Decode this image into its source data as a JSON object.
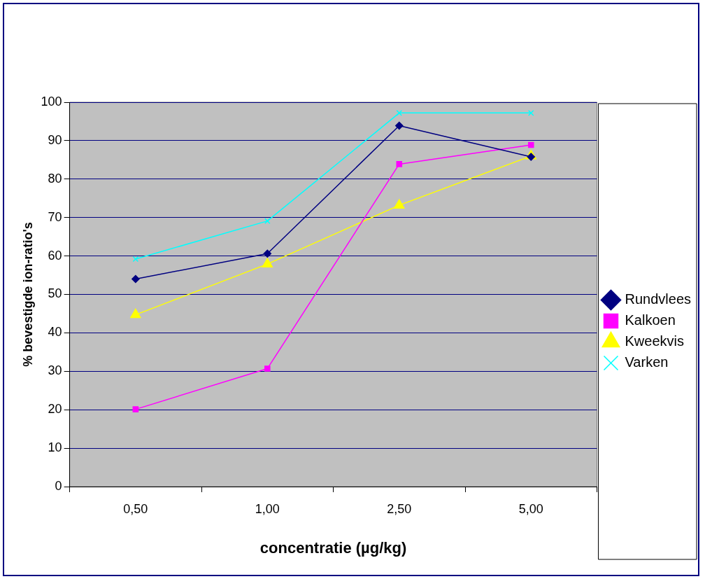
{
  "chart_data": {
    "type": "line",
    "xlabel": "concentratie (µg/kg)",
    "ylabel": "% bevestigde ion-ratio's",
    "categories": [
      "0,50",
      "1,00",
      "2,50",
      "5,00"
    ],
    "ylim": [
      0,
      100
    ],
    "yticks": [
      0,
      10,
      20,
      30,
      40,
      50,
      60,
      70,
      80,
      90,
      100
    ],
    "grid": "y",
    "legend": "right",
    "series": [
      {
        "name": "Rundvlees",
        "color": "#000080",
        "marker": "diamond",
        "values": [
          54,
          60.6,
          93.9,
          85.8
        ]
      },
      {
        "name": "Kalkoen",
        "color": "#ff00ff",
        "marker": "square",
        "values": [
          20.1,
          30.7,
          83.9,
          88.9
        ]
      },
      {
        "name": "Kweekvis",
        "color": "#ffff00",
        "marker": "triangle",
        "values": [
          44.7,
          57.9,
          73.2,
          86
        ]
      },
      {
        "name": "Varken",
        "color": "#00ffff",
        "marker": "cross",
        "values": [
          59.2,
          69.1,
          97.2,
          97.2
        ]
      }
    ]
  }
}
